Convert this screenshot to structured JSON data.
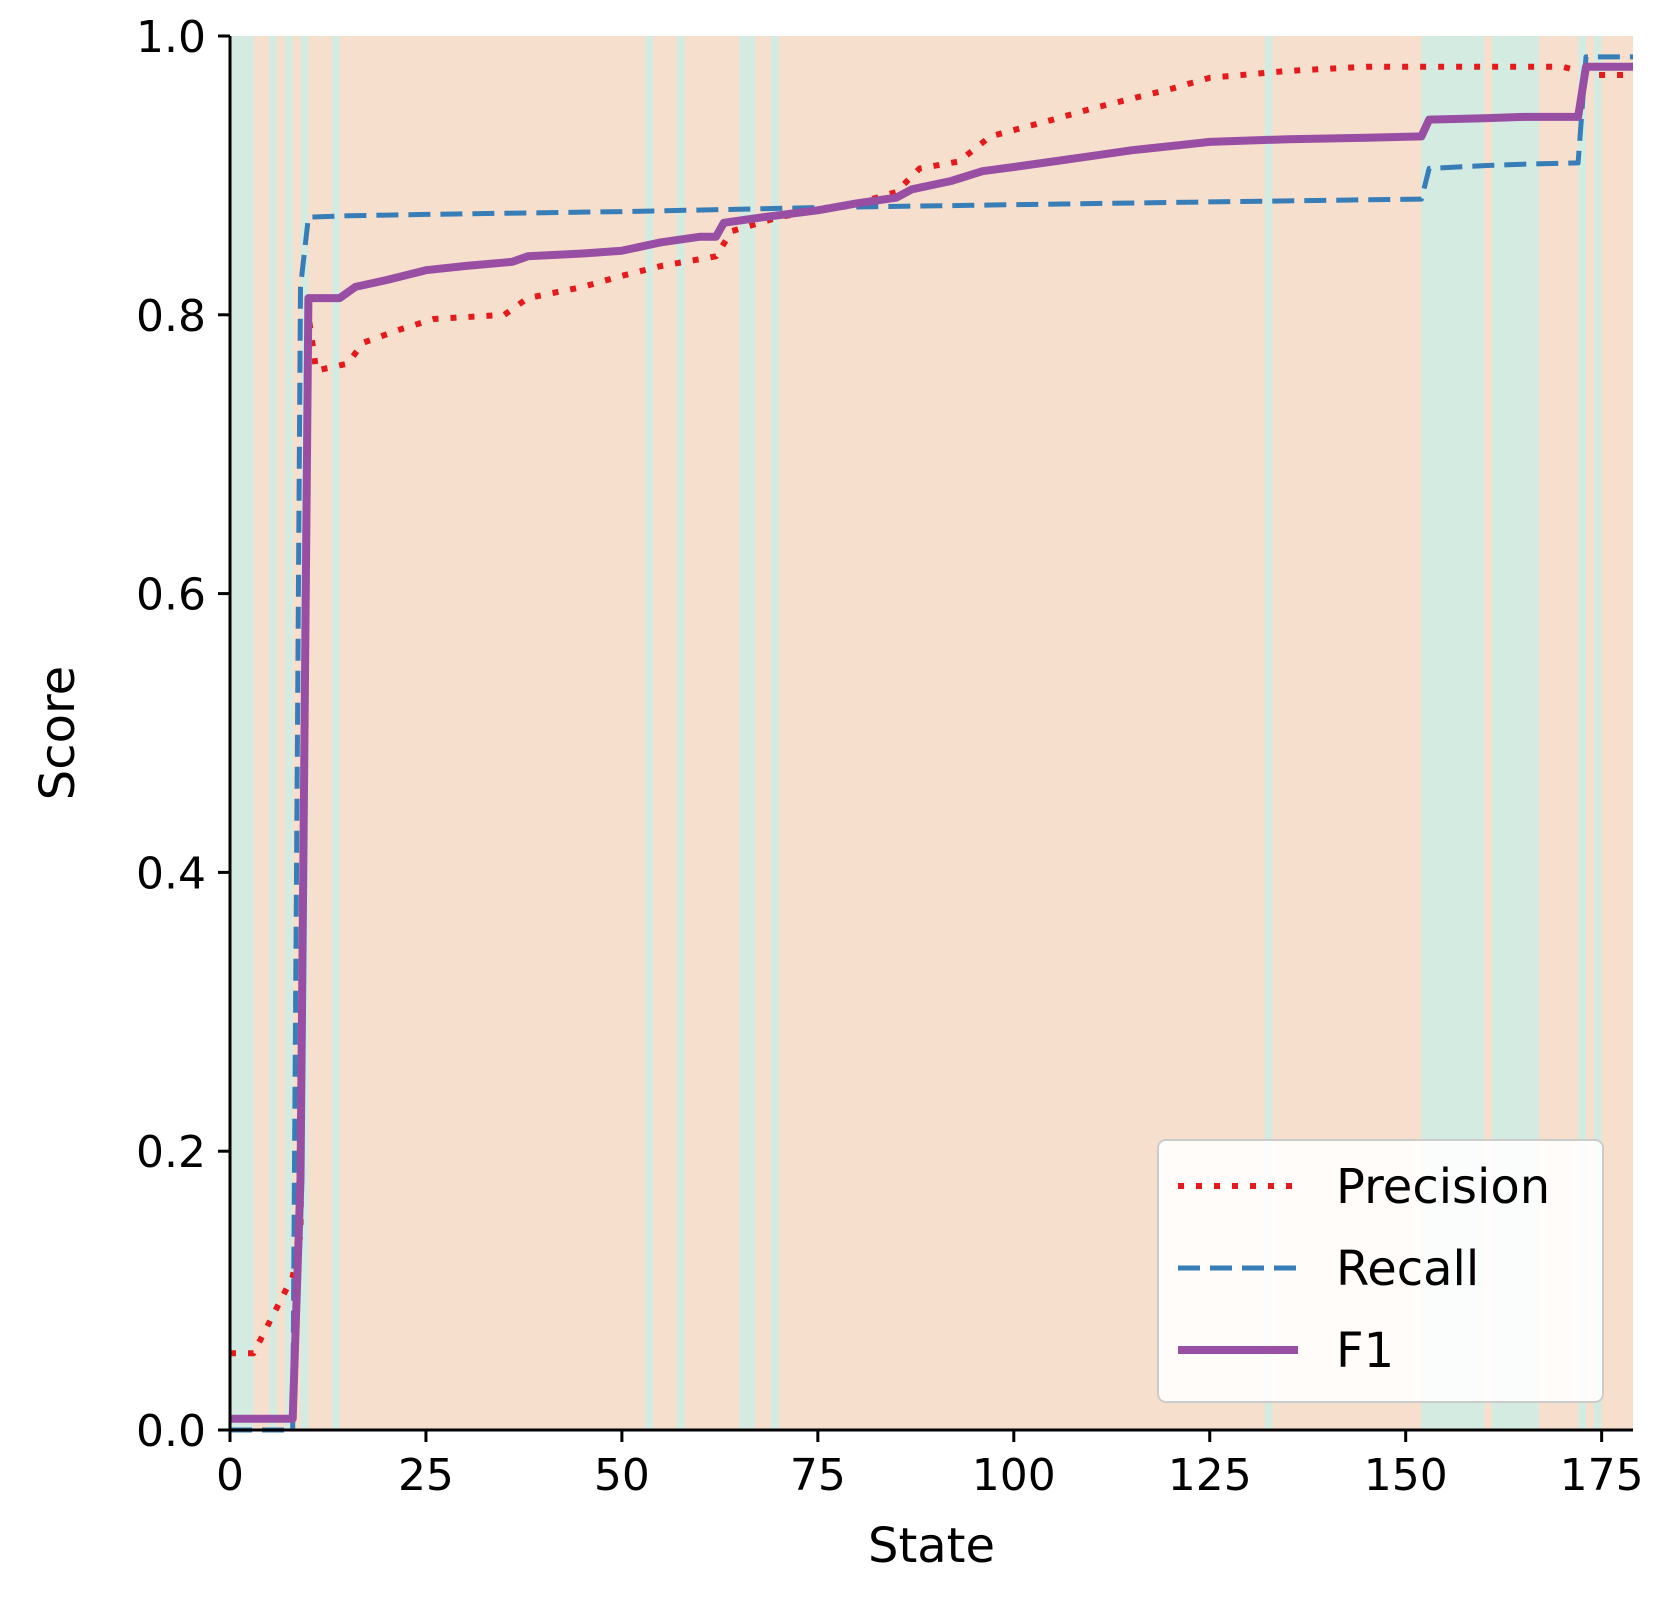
{
  "chart_data": {
    "type": "line",
    "title": "",
    "xlabel": "State",
    "ylabel": "Score",
    "xlim": [
      0,
      179
    ],
    "ylim": [
      0,
      1.0
    ],
    "xticks": [
      0,
      25,
      50,
      75,
      100,
      125,
      150,
      175
    ],
    "yticks": [
      0.0,
      0.2,
      0.4,
      0.6,
      0.8,
      1.0
    ],
    "xtick_labels": [
      "0",
      "25",
      "50",
      "75",
      "100",
      "125",
      "150",
      "175"
    ],
    "ytick_labels": [
      "0.0",
      "0.2",
      "0.4",
      "0.6",
      "0.8",
      "1.0"
    ],
    "grid": false,
    "legend_position": "lower-right",
    "background_colors": {
      "orange": "#f7dfcd",
      "teal": "#d4ebe2"
    },
    "teal_bands": [
      [
        0,
        3
      ],
      [
        5,
        6
      ],
      [
        7,
        8
      ],
      [
        9,
        10
      ],
      [
        13,
        14
      ],
      [
        53,
        54
      ],
      [
        57,
        58
      ],
      [
        65,
        67
      ],
      [
        69,
        70
      ],
      [
        132,
        133
      ],
      [
        152,
        154
      ],
      [
        154,
        160
      ],
      [
        161,
        163
      ],
      [
        163,
        167
      ],
      [
        172,
        173
      ],
      [
        174,
        175
      ]
    ],
    "series": [
      {
        "name": "Precision",
        "color": "#e41a1c",
        "style": "dotted",
        "x": [
          0,
          3,
          8,
          9,
          10,
          11,
          15,
          17,
          22,
          26,
          35,
          38,
          45,
          50,
          55,
          62,
          64,
          70,
          80,
          85,
          88,
          93,
          97,
          105,
          110,
          115,
          120,
          125,
          135,
          145,
          152,
          160,
          170,
          174,
          179
        ],
        "y": [
          0.055,
          0.055,
          0.11,
          0.14,
          0.8,
          0.76,
          0.765,
          0.78,
          0.79,
          0.797,
          0.8,
          0.812,
          0.82,
          0.828,
          0.835,
          0.842,
          0.86,
          0.87,
          0.88,
          0.888,
          0.905,
          0.91,
          0.928,
          0.94,
          0.948,
          0.955,
          0.962,
          0.97,
          0.975,
          0.978,
          0.978,
          0.978,
          0.978,
          0.972,
          0.972
        ]
      },
      {
        "name": "Recall",
        "color": "#377eb8",
        "style": "dashed",
        "x": [
          0,
          8,
          9,
          10,
          15,
          25,
          50,
          67,
          75,
          100,
          125,
          152,
          153,
          160,
          165,
          172,
          173,
          175,
          179
        ],
        "y": [
          0.0,
          0.0,
          0.82,
          0.87,
          0.871,
          0.872,
          0.874,
          0.876,
          0.877,
          0.879,
          0.881,
          0.883,
          0.905,
          0.907,
          0.908,
          0.909,
          0.985,
          0.985,
          0.985
        ]
      },
      {
        "name": "F1",
        "color": "#984ea3",
        "style": "solid",
        "x": [
          0,
          8,
          9,
          10,
          14,
          16,
          20,
          25,
          30,
          36,
          38,
          45,
          50,
          55,
          60,
          62,
          63,
          68,
          75,
          80,
          85,
          87,
          92,
          96,
          100,
          105,
          110,
          115,
          120,
          125,
          135,
          145,
          152,
          153,
          160,
          165,
          172,
          173,
          179
        ],
        "y": [
          0.008,
          0.008,
          0.18,
          0.812,
          0.812,
          0.82,
          0.825,
          0.832,
          0.835,
          0.838,
          0.842,
          0.844,
          0.846,
          0.852,
          0.856,
          0.856,
          0.866,
          0.87,
          0.875,
          0.88,
          0.884,
          0.89,
          0.896,
          0.903,
          0.906,
          0.91,
          0.914,
          0.918,
          0.921,
          0.924,
          0.926,
          0.927,
          0.928,
          0.94,
          0.941,
          0.942,
          0.942,
          0.978,
          0.978
        ]
      }
    ]
  }
}
